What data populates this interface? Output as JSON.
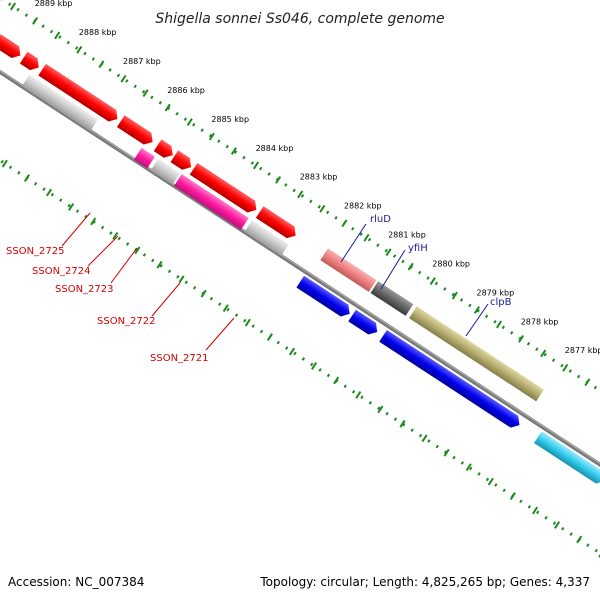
{
  "title": "Shigella sonnei Ss046, complete genome",
  "ticks": [
    "2889 kbp",
    "2888 kbp",
    "2887 kbp",
    "2886 kbp",
    "2885 kbp",
    "2884 kbp",
    "2883 kbp",
    "2882 kbp",
    "2881 kbp",
    "2880 kbp",
    "2879 kbp",
    "2878 kbp",
    "2877 kbp"
  ],
  "genes_left": [
    "SSON_2725",
    "SSON_2724",
    "SSON_2723",
    "SSON_2722",
    "SSON_2721"
  ],
  "genes_right": [
    "rluD",
    "yfiH",
    "clpB"
  ],
  "footer": {
    "accession": "Accession: NC_007384",
    "topology": "Topology: circular; Length: 4,825,265 bp; Genes: 4,337"
  },
  "colors": {
    "forward_cds": "#ff0000",
    "forward_pink": "#ff1aa0",
    "forward_gray": "#c8c8c8",
    "rna": "#f08080",
    "dark_gray": "#666666",
    "olive": "#b5ad70",
    "reverse_cds": "#0000ee",
    "cyan": "#33ccee",
    "backbone": "#7a7a7a",
    "dots": "#1a8a1a"
  }
}
